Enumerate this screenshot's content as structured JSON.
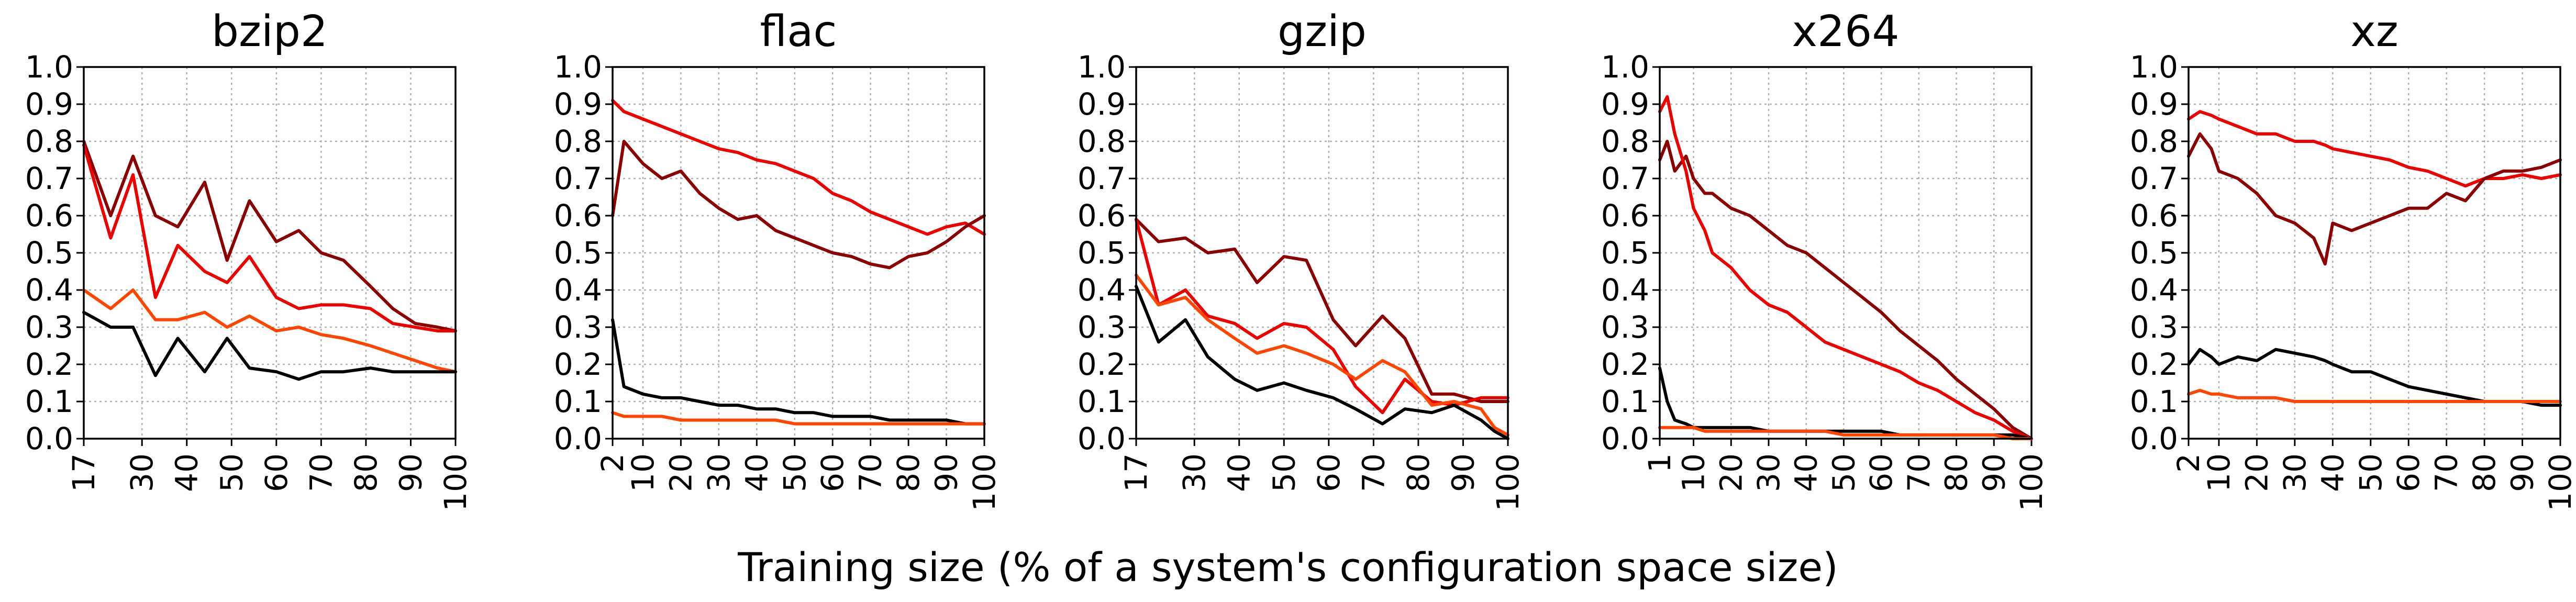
{
  "figure": {
    "xlabel": "Training size (% of a system's configuration space size)"
  },
  "colors": {
    "black": "#000000",
    "dark_red": "#8b0000",
    "red": "#ee0000",
    "orange_red": "#ff4500"
  },
  "chart_data": [
    {
      "type": "line",
      "title": "bzip2",
      "ylim": [
        0,
        1
      ],
      "yticks": [
        "0.0",
        "0.1",
        "0.2",
        "0.3",
        "0.4",
        "0.5",
        "0.6",
        "0.7",
        "0.8",
        "0.9",
        "1.0"
      ],
      "xlim": [
        17,
        100
      ],
      "xticks": [
        "17",
        "30",
        "40",
        "50",
        "60",
        "70",
        "80",
        "90",
        "100"
      ],
      "xtick_values": [
        17,
        30,
        40,
        50,
        60,
        70,
        80,
        90,
        100
      ],
      "grid": true,
      "x": [
        17,
        23,
        28,
        33,
        38,
        44,
        49,
        54,
        60,
        65,
        70,
        75,
        81,
        86,
        91,
        96,
        100
      ],
      "series": [
        {
          "color": "dark_red",
          "values": [
            0.8,
            0.6,
            0.76,
            0.6,
            0.57,
            0.69,
            0.48,
            0.64,
            0.53,
            0.56,
            0.5,
            0.48,
            0.41,
            0.35,
            0.31,
            0.3,
            0.29
          ]
        },
        {
          "color": "red",
          "values": [
            0.79,
            0.54,
            0.71,
            0.38,
            0.52,
            0.45,
            0.42,
            0.49,
            0.38,
            0.35,
            0.36,
            0.36,
            0.35,
            0.31,
            0.3,
            0.29,
            0.29
          ]
        },
        {
          "color": "orange_red",
          "values": [
            0.4,
            0.35,
            0.4,
            0.32,
            0.32,
            0.34,
            0.3,
            0.33,
            0.29,
            0.3,
            0.28,
            0.27,
            0.25,
            0.23,
            0.21,
            0.19,
            0.18
          ]
        },
        {
          "color": "black",
          "values": [
            0.34,
            0.3,
            0.3,
            0.17,
            0.27,
            0.18,
            0.27,
            0.19,
            0.18,
            0.16,
            0.18,
            0.18,
            0.19,
            0.18,
            0.18,
            0.18,
            0.18
          ]
        }
      ]
    },
    {
      "type": "line",
      "title": "flac",
      "ylim": [
        0,
        1
      ],
      "yticks": [
        "0.0",
        "0.1",
        "0.2",
        "0.3",
        "0.4",
        "0.5",
        "0.6",
        "0.7",
        "0.8",
        "0.9",
        "1.0"
      ],
      "xlim": [
        2,
        100
      ],
      "xticks": [
        "2",
        "10",
        "20",
        "30",
        "40",
        "50",
        "60",
        "70",
        "80",
        "90",
        "100"
      ],
      "xtick_values": [
        2,
        10,
        20,
        30,
        40,
        50,
        60,
        70,
        80,
        90,
        100
      ],
      "grid": true,
      "x": [
        2,
        5,
        10,
        15,
        20,
        25,
        30,
        35,
        40,
        45,
        50,
        55,
        60,
        65,
        70,
        75,
        80,
        85,
        90,
        95,
        100
      ],
      "series": [
        {
          "color": "red",
          "values": [
            0.91,
            0.88,
            0.86,
            0.84,
            0.82,
            0.8,
            0.78,
            0.77,
            0.75,
            0.74,
            0.72,
            0.7,
            0.66,
            0.64,
            0.61,
            0.59,
            0.57,
            0.55,
            0.57,
            0.58,
            0.55
          ]
        },
        {
          "color": "dark_red",
          "values": [
            0.6,
            0.8,
            0.74,
            0.7,
            0.72,
            0.66,
            0.62,
            0.59,
            0.6,
            0.56,
            0.54,
            0.52,
            0.5,
            0.49,
            0.47,
            0.46,
            0.49,
            0.5,
            0.53,
            0.57,
            0.6
          ]
        },
        {
          "color": "black",
          "values": [
            0.32,
            0.14,
            0.12,
            0.11,
            0.11,
            0.1,
            0.09,
            0.09,
            0.08,
            0.08,
            0.07,
            0.07,
            0.06,
            0.06,
            0.06,
            0.05,
            0.05,
            0.05,
            0.05,
            0.04,
            0.04
          ]
        },
        {
          "color": "orange_red",
          "values": [
            0.07,
            0.06,
            0.06,
            0.06,
            0.05,
            0.05,
            0.05,
            0.05,
            0.05,
            0.05,
            0.04,
            0.04,
            0.04,
            0.04,
            0.04,
            0.04,
            0.04,
            0.04,
            0.04,
            0.04,
            0.04
          ]
        }
      ]
    },
    {
      "type": "line",
      "title": "gzip",
      "ylim": [
        0,
        1
      ],
      "yticks": [
        "0.0",
        "0.1",
        "0.2",
        "0.3",
        "0.4",
        "0.5",
        "0.6",
        "0.7",
        "0.8",
        "0.9",
        "1.0"
      ],
      "xlim": [
        17,
        100
      ],
      "xticks": [
        "17",
        "30",
        "40",
        "50",
        "60",
        "70",
        "80",
        "90",
        "100"
      ],
      "xtick_values": [
        17,
        30,
        40,
        50,
        60,
        70,
        80,
        90,
        100
      ],
      "grid": true,
      "x": [
        17,
        22,
        28,
        33,
        39,
        44,
        50,
        55,
        61,
        66,
        72,
        77,
        83,
        88,
        94,
        97,
        100
      ],
      "series": [
        {
          "color": "dark_red",
          "values": [
            0.59,
            0.53,
            0.54,
            0.5,
            0.51,
            0.42,
            0.49,
            0.48,
            0.32,
            0.25,
            0.33,
            0.27,
            0.12,
            0.12,
            0.1,
            0.1,
            0.1
          ]
        },
        {
          "color": "red",
          "values": [
            0.59,
            0.36,
            0.4,
            0.33,
            0.31,
            0.27,
            0.31,
            0.3,
            0.24,
            0.14,
            0.07,
            0.16,
            0.1,
            0.09,
            0.11,
            0.11,
            0.11
          ]
        },
        {
          "color": "orange_red",
          "values": [
            0.44,
            0.36,
            0.38,
            0.32,
            0.27,
            0.23,
            0.25,
            0.23,
            0.2,
            0.16,
            0.21,
            0.18,
            0.09,
            0.1,
            0.08,
            0.03,
            0.01
          ]
        },
        {
          "color": "black",
          "values": [
            0.41,
            0.26,
            0.32,
            0.22,
            0.16,
            0.13,
            0.15,
            0.13,
            0.11,
            0.08,
            0.04,
            0.08,
            0.07,
            0.09,
            0.05,
            0.02,
            0.0
          ]
        }
      ]
    },
    {
      "type": "line",
      "title": "x264",
      "ylim": [
        0,
        1
      ],
      "yticks": [
        "0.0",
        "0.1",
        "0.2",
        "0.3",
        "0.4",
        "0.5",
        "0.6",
        "0.7",
        "0.8",
        "0.9",
        "1.0"
      ],
      "xlim": [
        1,
        100
      ],
      "xticks": [
        "1",
        "10",
        "20",
        "30",
        "40",
        "50",
        "60",
        "70",
        "80",
        "90",
        "100"
      ],
      "xtick_values": [
        1,
        10,
        20,
        30,
        40,
        50,
        60,
        70,
        80,
        90,
        100
      ],
      "grid": true,
      "x": [
        1,
        3,
        5,
        8,
        10,
        13,
        15,
        20,
        25,
        30,
        35,
        40,
        45,
        50,
        55,
        60,
        65,
        70,
        75,
        80,
        85,
        90,
        95,
        100
      ],
      "series": [
        {
          "color": "dark_red",
          "values": [
            0.75,
            0.8,
            0.72,
            0.76,
            0.7,
            0.66,
            0.66,
            0.62,
            0.6,
            0.56,
            0.52,
            0.5,
            0.46,
            0.42,
            0.38,
            0.34,
            0.29,
            0.25,
            0.21,
            0.16,
            0.12,
            0.08,
            0.03,
            0.0
          ]
        },
        {
          "color": "red",
          "values": [
            0.88,
            0.92,
            0.82,
            0.72,
            0.62,
            0.56,
            0.5,
            0.46,
            0.4,
            0.36,
            0.34,
            0.3,
            0.26,
            0.24,
            0.22,
            0.2,
            0.18,
            0.15,
            0.13,
            0.1,
            0.07,
            0.05,
            0.02,
            0.0
          ]
        },
        {
          "color": "black",
          "values": [
            0.19,
            0.1,
            0.05,
            0.04,
            0.03,
            0.03,
            0.03,
            0.03,
            0.03,
            0.02,
            0.02,
            0.02,
            0.02,
            0.02,
            0.02,
            0.02,
            0.01,
            0.01,
            0.01,
            0.01,
            0.01,
            0.01,
            0.01,
            0.0
          ]
        },
        {
          "color": "orange_red",
          "values": [
            0.03,
            0.03,
            0.03,
            0.03,
            0.03,
            0.02,
            0.02,
            0.02,
            0.02,
            0.02,
            0.02,
            0.02,
            0.02,
            0.01,
            0.01,
            0.01,
            0.01,
            0.01,
            0.01,
            0.01,
            0.01,
            0.01,
            0.0,
            0.0
          ]
        }
      ]
    },
    {
      "type": "line",
      "title": "xz",
      "ylim": [
        0,
        1
      ],
      "yticks": [
        "0.0",
        "0.1",
        "0.2",
        "0.3",
        "0.4",
        "0.5",
        "0.6",
        "0.7",
        "0.8",
        "0.9",
        "1.0"
      ],
      "xlim": [
        2,
        100
      ],
      "xticks": [
        "2",
        "10",
        "20",
        "30",
        "40",
        "50",
        "60",
        "70",
        "80",
        "90",
        "100"
      ],
      "xtick_values": [
        2,
        10,
        20,
        30,
        40,
        50,
        60,
        70,
        80,
        90,
        100
      ],
      "grid": true,
      "x": [
        2,
        5,
        8,
        10,
        15,
        20,
        25,
        30,
        35,
        38,
        40,
        45,
        50,
        55,
        60,
        65,
        70,
        75,
        80,
        85,
        90,
        95,
        100
      ],
      "series": [
        {
          "color": "red",
          "values": [
            0.86,
            0.88,
            0.87,
            0.86,
            0.84,
            0.82,
            0.82,
            0.8,
            0.8,
            0.79,
            0.78,
            0.77,
            0.76,
            0.75,
            0.73,
            0.72,
            0.7,
            0.68,
            0.7,
            0.7,
            0.71,
            0.7,
            0.71
          ]
        },
        {
          "color": "dark_red",
          "values": [
            0.76,
            0.82,
            0.78,
            0.72,
            0.7,
            0.66,
            0.6,
            0.58,
            0.54,
            0.47,
            0.58,
            0.56,
            0.58,
            0.6,
            0.62,
            0.62,
            0.66,
            0.64,
            0.7,
            0.72,
            0.72,
            0.73,
            0.75
          ]
        },
        {
          "color": "black",
          "values": [
            0.2,
            0.24,
            0.22,
            0.2,
            0.22,
            0.21,
            0.24,
            0.23,
            0.22,
            0.21,
            0.2,
            0.18,
            0.18,
            0.16,
            0.14,
            0.13,
            0.12,
            0.11,
            0.1,
            0.1,
            0.1,
            0.09,
            0.09
          ]
        },
        {
          "color": "orange_red",
          "values": [
            0.12,
            0.13,
            0.12,
            0.12,
            0.11,
            0.11,
            0.11,
            0.1,
            0.1,
            0.1,
            0.1,
            0.1,
            0.1,
            0.1,
            0.1,
            0.1,
            0.1,
            0.1,
            0.1,
            0.1,
            0.1,
            0.1,
            0.1
          ]
        }
      ]
    }
  ]
}
